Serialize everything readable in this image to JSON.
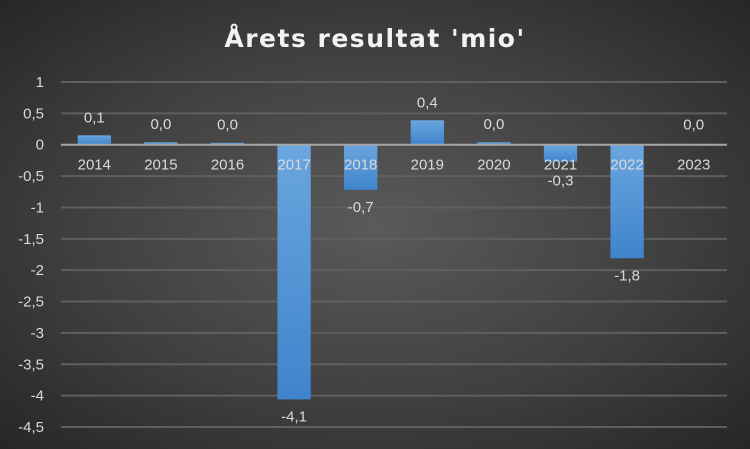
{
  "chart_data": {
    "type": "bar",
    "title": "Årets resultat 'mio'",
    "xlabel": "",
    "ylabel": "",
    "categories": [
      "2014",
      "2015",
      "2016",
      "2017",
      "2018",
      "2019",
      "2020",
      "2021",
      "2022",
      "2023"
    ],
    "values": [
      0.15,
      0.04,
      0.03,
      -4.06,
      -0.72,
      0.39,
      0.04,
      -0.27,
      -1.81,
      0.01
    ],
    "data_labels": [
      "0,1",
      "0,0",
      "0,0",
      "-4,1",
      "-0,7",
      "0,4",
      "0,0",
      "-0,3",
      "-1,8",
      "0,0"
    ],
    "ylim": [
      -4.5,
      1
    ],
    "yticks": [
      1,
      0.5,
      0,
      -0.5,
      -1,
      -1.5,
      -2,
      -2.5,
      -3,
      -3.5,
      -4,
      -4.5
    ],
    "ytick_labels": [
      "1",
      "0,5",
      "0",
      "-0,5",
      "-1",
      "-1,5",
      "-2",
      "-2,5",
      "-3",
      "-3,5",
      "-4",
      "-4,5"
    ],
    "grid": true,
    "legend": "none",
    "bar_color": "#5b9bd5"
  }
}
